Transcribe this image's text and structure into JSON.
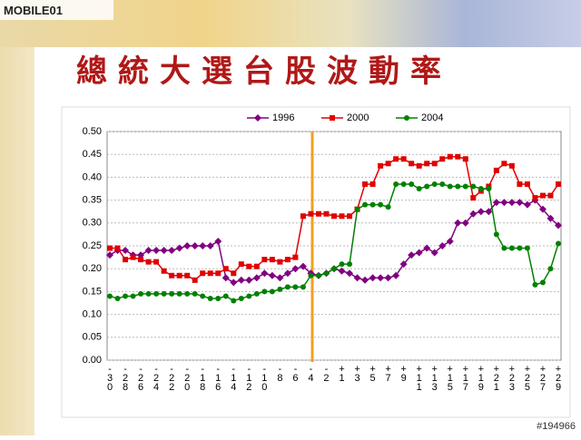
{
  "header": {
    "logo": "MOBILE01",
    "watermark": "#194966"
  },
  "chart_data": {
    "type": "line",
    "title": "總統大選台股波動率",
    "categories": [
      "-30",
      null,
      "-28",
      null,
      "-26",
      null,
      "-24",
      null,
      "-22",
      null,
      "-20",
      null,
      "-18",
      null,
      "-16",
      null,
      "-14",
      null,
      "-12",
      null,
      "-10",
      null,
      "-8",
      null,
      "-6",
      null,
      "-4",
      null,
      "-2",
      null,
      "+1",
      null,
      "+3",
      null,
      "+5",
      null,
      "+7",
      null,
      "+9",
      null,
      "+11",
      null,
      "+13",
      null,
      "+15",
      null,
      "+17",
      null,
      "+19",
      null,
      "+21",
      null,
      "+23",
      null,
      "+25",
      null,
      "+27",
      null,
      "+29"
    ],
    "series": [
      {
        "name": "1996",
        "color": "#800080",
        "marker": "diamond",
        "values": [
          0.23,
          0.24,
          0.24,
          0.23,
          0.23,
          0.24,
          0.24,
          0.24,
          0.24,
          0.245,
          0.25,
          0.25,
          0.25,
          0.25,
          0.26,
          0.18,
          0.17,
          0.175,
          0.175,
          0.18,
          0.19,
          0.185,
          0.18,
          0.19,
          0.2,
          0.205,
          0.19,
          0.185,
          0.19,
          0.2,
          0.195,
          0.19,
          0.18,
          0.175,
          0.18,
          0.18,
          0.18,
          0.185,
          0.21,
          0.23,
          0.235,
          0.245,
          0.235,
          0.25,
          0.26,
          0.3,
          0.3,
          0.32,
          0.325,
          0.325,
          0.345,
          0.345,
          0.345,
          0.345,
          0.34,
          0.35,
          0.33,
          0.31,
          0.295
        ]
      },
      {
        "name": "2000",
        "color": "#e00000",
        "marker": "square",
        "values": [
          0.245,
          0.245,
          0.22,
          0.225,
          0.22,
          0.215,
          0.215,
          0.195,
          0.185,
          0.185,
          0.185,
          0.175,
          0.19,
          0.19,
          0.19,
          0.2,
          0.19,
          0.21,
          0.205,
          0.205,
          0.22,
          0.22,
          0.215,
          0.22,
          0.225,
          0.315,
          0.32,
          0.32,
          0.32,
          0.315,
          0.315,
          0.315,
          0.33,
          0.385,
          0.385,
          0.425,
          0.43,
          0.44,
          0.44,
          0.43,
          0.425,
          0.43,
          0.43,
          0.44,
          0.445,
          0.445,
          0.44,
          0.355,
          0.37,
          0.38,
          0.415,
          0.43,
          0.425,
          0.385,
          0.385,
          0.355,
          0.36,
          0.36,
          0.385
        ]
      },
      {
        "name": "2004",
        "color": "#008000",
        "marker": "circle",
        "values": [
          0.14,
          0.135,
          0.14,
          0.14,
          0.145,
          0.145,
          0.145,
          0.145,
          0.145,
          0.145,
          0.145,
          0.145,
          0.14,
          0.135,
          0.135,
          0.14,
          0.13,
          0.135,
          0.14,
          0.145,
          0.15,
          0.15,
          0.155,
          0.16,
          0.16,
          0.16,
          0.185,
          0.185,
          0.19,
          0.2,
          0.21,
          0.21,
          0.33,
          0.34,
          0.34,
          0.34,
          0.335,
          0.385,
          0.385,
          0.385,
          0.375,
          0.38,
          0.385,
          0.385,
          0.38,
          0.38,
          0.38,
          0.38,
          0.375,
          0.375,
          0.275,
          0.245,
          0.245,
          0.245,
          0.245,
          0.165,
          0.17,
          0.2,
          0.255
        ]
      }
    ],
    "ylim": [
      0,
      0.5
    ],
    "yticks": [
      {
        "value": 0,
        "label": "0.00"
      },
      {
        "value": 0.05,
        "label": "0.05"
      },
      {
        "value": 0.1,
        "label": "0.10"
      },
      {
        "value": 0.15,
        "label": "0.15"
      },
      {
        "value": 0.2,
        "label": "0.20"
      },
      {
        "value": 0.25,
        "label": "0.25"
      },
      {
        "value": 0.3,
        "label": "0.30"
      },
      {
        "value": 0.35,
        "label": "0.35"
      },
      {
        "value": 0.4,
        "label": "0.40"
      },
      {
        "value": 0.45,
        "label": "0.45"
      },
      {
        "value": 0.5,
        "label": "0.50"
      }
    ],
    "grid": true,
    "legend": "top"
  }
}
